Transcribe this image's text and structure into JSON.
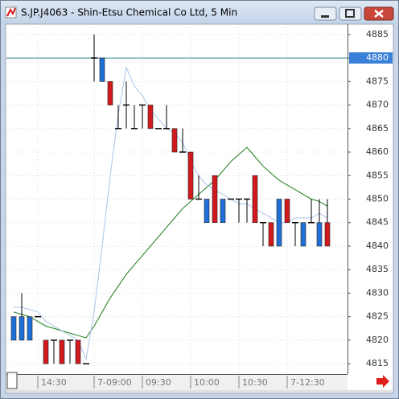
{
  "window_title": "S.JP.J4063 - Shin-Etsu Chemical Co Ltd, 5 Min",
  "chart_data": {
    "type": "candlestick",
    "categories": [
      null,
      null,
      null,
      "14:30",
      null,
      null,
      null,
      null,
      null,
      null,
      "7-09:00",
      null,
      null,
      null,
      null,
      null,
      "09:30",
      null,
      null,
      null,
      null,
      null,
      "10:00",
      null,
      null,
      null,
      null,
      null,
      "10:30",
      null,
      null,
      null,
      null,
      null,
      "7-12:30",
      null,
      null,
      null,
      null,
      null
    ],
    "open": [
      4820,
      4820,
      4820,
      4825,
      4820,
      4820,
      4820,
      4820,
      4820,
      4815,
      4880,
      4875,
      4875,
      4865,
      4870,
      4865,
      4870,
      4870,
      4865,
      4865,
      4865,
      4860,
      4860,
      4850,
      4845,
      4855,
      4845,
      4850,
      4850,
      4850,
      4855,
      4845,
      4845,
      4840,
      4850,
      4845,
      4840,
      4845,
      4840,
      4845
    ],
    "high": [
      4825,
      4830,
      4825,
      4825,
      4820,
      4820,
      4820,
      4820,
      4820,
      4815,
      4885,
      4880,
      4875,
      4870,
      4875,
      4870,
      4870,
      4870,
      4865,
      4870,
      4865,
      4865,
      4860,
      4855,
      4850,
      4855,
      4850,
      4850,
      4850,
      4850,
      4855,
      4845,
      4845,
      4850,
      4850,
      4845,
      4845,
      4850,
      4850,
      4850
    ],
    "low": [
      4820,
      4820,
      4820,
      4825,
      4815,
      4815,
      4815,
      4815,
      4815,
      4815,
      4875,
      4875,
      4870,
      4865,
      4865,
      4865,
      4865,
      4865,
      4865,
      4865,
      4860,
      4860,
      4850,
      4850,
      4845,
      4845,
      4845,
      4850,
      4845,
      4845,
      4845,
      4840,
      4840,
      4840,
      4845,
      4840,
      4840,
      4845,
      4840,
      4840
    ],
    "close": [
      4825,
      4825,
      4825,
      4825,
      4815,
      4820,
      4815,
      4820,
      4815,
      4815,
      4880,
      4880,
      4870,
      4865,
      4870,
      4865,
      4870,
      4865,
      4865,
      4865,
      4860,
      4860,
      4850,
      4850,
      4850,
      4845,
      4850,
      4850,
      4850,
      4850,
      4845,
      4845,
      4840,
      4850,
      4845,
      4845,
      4845,
      4845,
      4845,
      4840
    ],
    "up_color": "#1f6fd6",
    "down_color": "#d01a1e",
    "series": [
      {
        "color": "#1a7a1a",
        "values": [
          4826,
          4825.5,
          4825,
          4824,
          4823,
          4822.5,
          4822,
          4821.5,
          4821,
          4820.5,
          4823,
          4826,
          4829,
          4831.5,
          4834,
          4836,
          4838,
          4840,
          4842,
          4844,
          4846,
          4848,
          4849.5,
          4851,
          4852.5,
          4854,
          4856,
          4858,
          4859.5,
          4861,
          4859,
          4857,
          4855.5,
          4854,
          4853,
          4852,
          4851,
          4850,
          4849.5,
          4848.5
        ]
      },
      {
        "color": "#a9c3e8",
        "values": [
          4827,
          4827,
          4826.5,
          4826,
          4824,
          4823,
          4822,
          4821,
          4820,
          4816,
          4826,
          4840,
          4855,
          4868,
          4878,
          4874,
          4872,
          4869,
          4867,
          4865,
          4864,
          4862,
          4858,
          4855,
          4853,
          4852,
          4851,
          4850,
          4849,
          4849,
          4848,
          4847,
          4846,
          4845,
          4845,
          4846,
          4846,
          4846,
          4847,
          4846
        ]
      }
    ],
    "price_line": 4880,
    "price_line_color": "#2a8a9a",
    "ylim": [
      4812.8,
      4887.2
    ],
    "yticks": [
      4815,
      4820,
      4825,
      4830,
      4835,
      4840,
      4845,
      4850,
      4855,
      4860,
      4865,
      4870,
      4875,
      4880,
      4885
    ],
    "grid": true
  }
}
